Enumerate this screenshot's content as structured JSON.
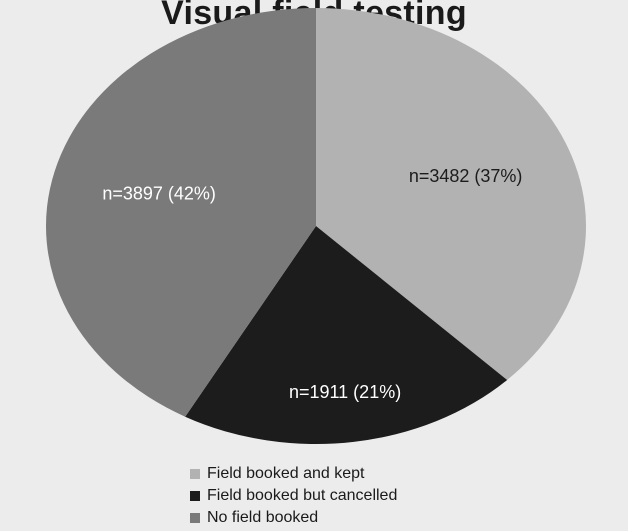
{
  "chart_data": {
    "type": "pie",
    "title": "Visual field testing",
    "categories": [
      "Field booked and kept",
      "Field booked but cancelled",
      "No field booked"
    ],
    "values": [
      3482,
      1911,
      3897
    ],
    "percentages": [
      37,
      21,
      42
    ],
    "labels": [
      "n=3482 (37%)",
      "n=1911 (21%)",
      "n=3897 (42%)"
    ],
    "colors": [
      "#b2b2b2",
      "#1c1c1c",
      "#7a7a7a"
    ],
    "label_colors": [
      "#1c1c1c",
      "#ffffff",
      "#ffffff"
    ],
    "legend_position": "bottom",
    "start_angle": "12 o'clock, clockwise"
  }
}
